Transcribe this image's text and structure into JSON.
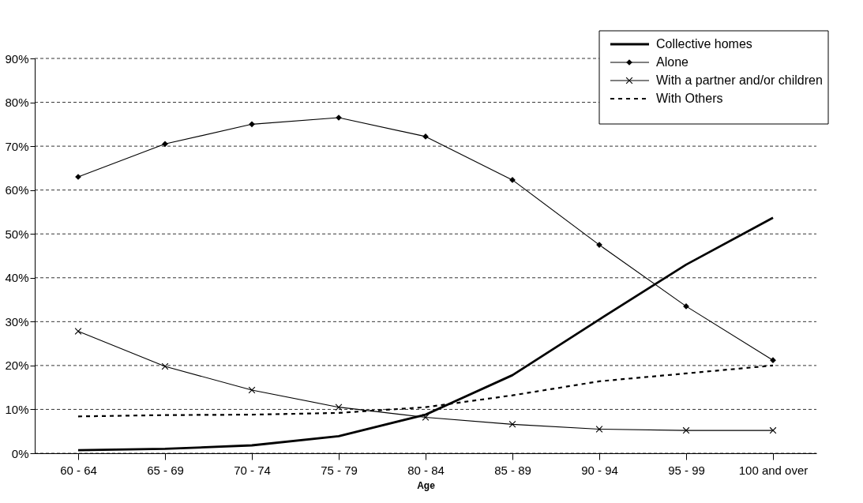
{
  "chart_data": {
    "type": "line",
    "xlabel": "Age",
    "categories": [
      "60 - 64",
      "65 - 69",
      "70 - 74",
      "75 - 79",
      "80 - 84",
      "85 - 89",
      "90 - 94",
      "95 - 99",
      "100 and over"
    ],
    "series": [
      {
        "name": "Collective homes",
        "color": "#000000",
        "marker": "none",
        "line_style": "solid",
        "values": [
          0.7,
          1.0,
          1.8,
          3.9,
          8.8,
          17.8,
          30.5,
          43.0,
          53.7
        ]
      },
      {
        "name": "Alone",
        "color": "#000000",
        "marker": "diamond",
        "line_style": "solid",
        "values": [
          63.0,
          70.5,
          75.0,
          76.5,
          72.2,
          62.3,
          47.5,
          33.5,
          21.2
        ]
      },
      {
        "name": "With a partner and/or children",
        "color": "#000000",
        "marker": "cross",
        "line_style": "solid",
        "values": [
          27.8,
          19.8,
          14.4,
          10.5,
          8.2,
          6.6,
          5.5,
          5.2,
          5.2
        ]
      },
      {
        "name": "With Others",
        "color": "#000000",
        "marker": "none",
        "line_style": "dashed",
        "values": [
          8.4,
          8.7,
          8.8,
          9.2,
          10.5,
          13.2,
          16.4,
          18.2,
          20.0
        ]
      }
    ],
    "ylim": [
      0,
      90
    ],
    "yticks": [
      {
        "value": 0,
        "label": "0%"
      },
      {
        "value": 10,
        "label": "10%"
      },
      {
        "value": 20,
        "label": "20%"
      },
      {
        "value": 30,
        "label": "30%"
      },
      {
        "value": 40,
        "label": "40%"
      },
      {
        "value": 50,
        "label": "50%"
      },
      {
        "value": 60,
        "label": "60%"
      },
      {
        "value": 70,
        "label": "70%"
      },
      {
        "value": 80,
        "label": "80%"
      },
      {
        "value": 90,
        "label": "90%"
      }
    ],
    "grid": "y",
    "legend": "top right"
  }
}
